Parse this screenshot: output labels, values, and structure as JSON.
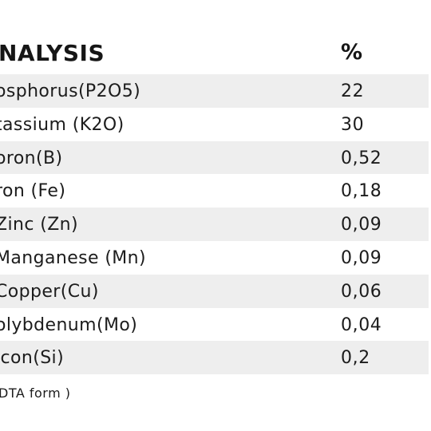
{
  "table": {
    "header": {
      "analysis": "NALYSIS",
      "percent": "%"
    },
    "rows": [
      {
        "name": "osphorus(P2O5)",
        "value": "22"
      },
      {
        "name": "tassium (K2O)",
        "value": "30"
      },
      {
        "name": "oron(B)",
        "value": "0,52"
      },
      {
        "name": "ron (Fe)",
        "value": "0,18"
      },
      {
        "name": "Zinc (Zn)",
        "value": "0,09"
      },
      {
        "name": "Manganese (Mn)",
        "value": "0,09"
      },
      {
        "name": "Copper(Cu)",
        "value": "0,06"
      },
      {
        "name": "olybdenum(Mo)",
        "value": "0,04"
      },
      {
        "name": "icon(Si)",
        "value": "0,2"
      }
    ]
  },
  "footnote": "DTA form )",
  "colors": {
    "row_shade": "#eeeeee",
    "text": "#1a1a1a"
  }
}
